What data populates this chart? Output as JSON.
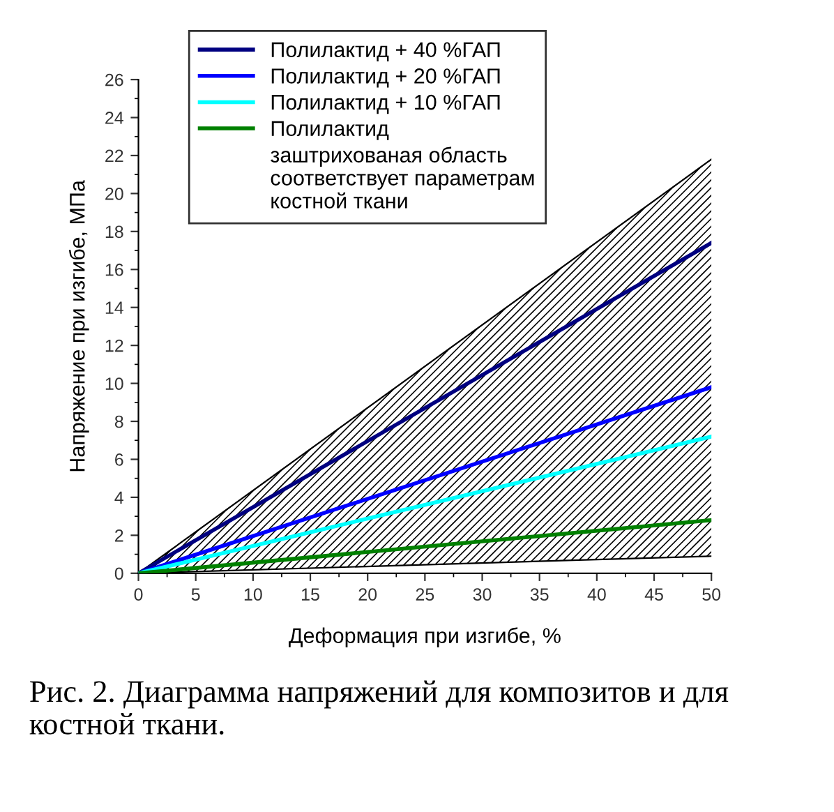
{
  "chart_data": {
    "type": "line",
    "xlabel": "Деформация при изгибе, %",
    "ylabel": "Напряжение при изгибе, МПа",
    "x": [
      0,
      50
    ],
    "series": [
      {
        "name": "Полилактид + 40 %ГАП",
        "color": "#000080",
        "values": [
          0,
          17.4
        ]
      },
      {
        "name": "Полилактид + 20 %ГАП",
        "color": "#0000ff",
        "values": [
          0,
          9.8
        ]
      },
      {
        "name": "Полилактид + 10 %ГАП",
        "color": "#00ffff",
        "values": [
          0,
          7.2
        ]
      },
      {
        "name": "Полилактид",
        "color": "#008000",
        "values": [
          0,
          2.8
        ]
      },
      {
        "color": "#000000",
        "values": [
          0,
          21.8
        ],
        "lower": [
          0,
          0.9
        ],
        "upper": [
          0,
          21.8
        ]
      },
      {
        "color": "#000000",
        "values": [
          0,
          0.9
        ]
      }
    ],
    "xlim": [
      0,
      50
    ],
    "ylim": [
      0,
      26
    ],
    "xticks": [
      0,
      5,
      10,
      15,
      20,
      25,
      30,
      35,
      40,
      45,
      50
    ],
    "yticks": [
      0,
      2,
      4,
      6,
      8,
      10,
      12,
      14,
      16,
      18,
      20,
      22,
      24,
      26
    ],
    "legend": "top left",
    "annotations": [
      "заштрихованая область соответствует параметрам костной ткани",
      "Рис. 2. Диаграмма напряжений для композитов и для костной ткани."
    ]
  }
}
